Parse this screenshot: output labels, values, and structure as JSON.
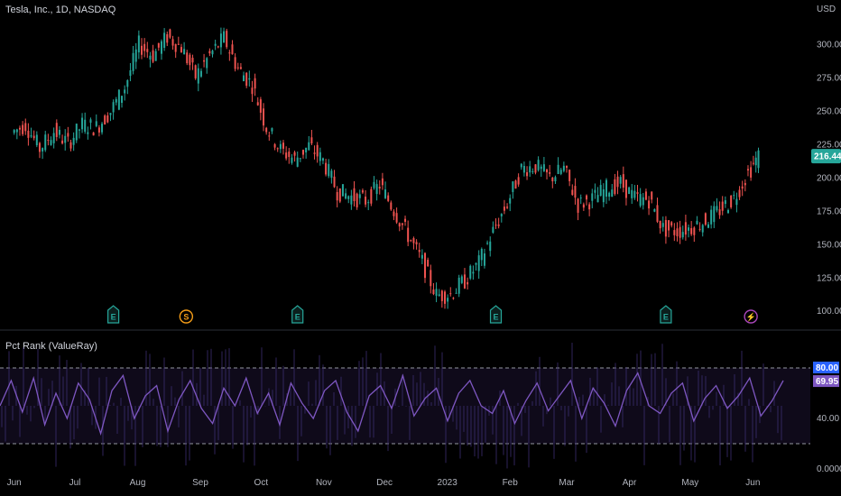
{
  "header": {
    "symbol_title": "Tesla, Inc., 1D, NASDAQ",
    "currency": "USD"
  },
  "indicator": {
    "title": "Pct Rank (ValueRay)",
    "upper_label": "80.00",
    "current_label": "69.95",
    "upper_color": "#2962ff",
    "current_color": "#7e57c2"
  },
  "colors": {
    "up": "#26a69a",
    "down": "#ef5350",
    "line": "#7e57c2",
    "price_badge": "#26a69a",
    "earnings": "#26a69a",
    "dividend": "#f59d18",
    "split": "#ab47bc"
  },
  "events": [
    {
      "kind": "earnings",
      "glyph": "E",
      "date_index": 0
    },
    {
      "kind": "dividend",
      "glyph": "S",
      "date_index": 1
    },
    {
      "kind": "earnings",
      "glyph": "E",
      "date_index": 2
    },
    {
      "kind": "earnings",
      "glyph": "E",
      "date_index": 3
    },
    {
      "kind": "earnings",
      "glyph": "E",
      "date_index": 4
    },
    {
      "kind": "split",
      "glyph": "⚡",
      "date_index": 5
    }
  ],
  "chart_data": [
    {
      "type": "candlestick",
      "title": "Tesla, Inc., 1D, NASDAQ",
      "ylabel": "USD",
      "ylim": [
        90,
        320
      ],
      "y_ticks": [
        "300.00",
        "275.00",
        "250.00",
        "225.00",
        "200.00",
        "175.00",
        "150.00",
        "125.00",
        "100.00"
      ],
      "x_ticks": [
        "Jun",
        "Jul",
        "Aug",
        "Sep",
        "Oct",
        "Nov",
        "Dec",
        "2023",
        "Feb",
        "Mar",
        "Apr",
        "May",
        "Jun"
      ],
      "last_price": "216.44",
      "event_dates": [
        "2022-07-20",
        "2022-08-25",
        "2022-10-19",
        "2023-01-25",
        "2023-04-19",
        "2023-05-31"
      ],
      "series": [
        {
          "values": [
            {
              "d": "2022-06-01",
              "c": 234
            },
            {
              "d": "2022-06-08",
              "c": 240
            },
            {
              "d": "2022-06-15",
              "c": 222
            },
            {
              "d": "2022-06-22",
              "c": 235
            },
            {
              "d": "2022-06-29",
              "c": 226
            },
            {
              "d": "2022-07-06",
              "c": 240
            },
            {
              "d": "2022-07-13",
              "c": 238
            },
            {
              "d": "2022-07-20",
              "c": 250
            },
            {
              "d": "2022-07-27",
              "c": 268
            },
            {
              "d": "2022-08-03",
              "c": 300
            },
            {
              "d": "2022-08-10",
              "c": 292
            },
            {
              "d": "2022-08-17",
              "c": 306
            },
            {
              "d": "2022-08-24",
              "c": 298
            },
            {
              "d": "2022-08-31",
              "c": 276
            },
            {
              "d": "2022-09-07",
              "c": 292
            },
            {
              "d": "2022-09-14",
              "c": 305
            },
            {
              "d": "2022-09-21",
              "c": 282
            },
            {
              "d": "2022-09-28",
              "c": 270
            },
            {
              "d": "2022-10-05",
              "c": 238
            },
            {
              "d": "2022-10-12",
              "c": 221
            },
            {
              "d": "2022-10-19",
              "c": 214
            },
            {
              "d": "2022-10-26",
              "c": 224
            },
            {
              "d": "2022-11-02",
              "c": 213
            },
            {
              "d": "2022-11-09",
              "c": 190
            },
            {
              "d": "2022-11-16",
              "c": 186
            },
            {
              "d": "2022-11-23",
              "c": 183
            },
            {
              "d": "2022-11-30",
              "c": 195
            },
            {
              "d": "2022-12-07",
              "c": 176
            },
            {
              "d": "2022-12-14",
              "c": 157
            },
            {
              "d": "2022-12-21",
              "c": 137
            },
            {
              "d": "2022-12-28",
              "c": 112
            },
            {
              "d": "2023-01-04",
              "c": 113
            },
            {
              "d": "2023-01-11",
              "c": 123
            },
            {
              "d": "2023-01-18",
              "c": 136
            },
            {
              "d": "2023-01-25",
              "c": 160
            },
            {
              "d": "2023-02-01",
              "c": 181
            },
            {
              "d": "2023-02-08",
              "c": 207
            },
            {
              "d": "2023-02-15",
              "c": 209
            },
            {
              "d": "2023-02-22",
              "c": 200
            },
            {
              "d": "2023-03-01",
              "c": 207
            },
            {
              "d": "2023-03-08",
              "c": 180
            },
            {
              "d": "2023-03-15",
              "c": 184
            },
            {
              "d": "2023-03-22",
              "c": 192
            },
            {
              "d": "2023-03-29",
              "c": 196
            },
            {
              "d": "2023-04-05",
              "c": 185
            },
            {
              "d": "2023-04-12",
              "c": 184
            },
            {
              "d": "2023-04-19",
              "c": 162
            },
            {
              "d": "2023-04-26",
              "c": 160
            },
            {
              "d": "2023-05-03",
              "c": 163
            },
            {
              "d": "2023-05-10",
              "c": 168
            },
            {
              "d": "2023-05-17",
              "c": 176
            },
            {
              "d": "2023-05-24",
              "c": 185
            },
            {
              "d": "2023-05-31",
              "c": 204
            },
            {
              "d": "2023-06-05",
              "c": 216.44
            }
          ]
        }
      ]
    },
    {
      "type": "line",
      "title": "Pct Rank (ValueRay)",
      "ylim": [
        0,
        100
      ],
      "y_ticks": [
        "40.00",
        "0.0000"
      ],
      "bands": [
        80,
        20
      ],
      "last_value": 69.95,
      "series": [
        {
          "values": [
            50,
            70,
            45,
            72,
            35,
            60,
            40,
            68,
            55,
            28,
            62,
            74,
            40,
            58,
            66,
            30,
            55,
            70,
            48,
            36,
            64,
            50,
            72,
            44,
            60,
            35,
            68,
            52,
            40,
            62,
            70,
            45,
            30,
            58,
            66,
            48,
            74,
            42,
            56,
            64,
            38,
            60,
            70,
            50,
            44,
            62,
            36,
            54,
            68,
            46,
            58,
            70,
            40,
            64,
            52,
            34,
            62,
            76,
            50,
            44,
            60,
            68,
            38,
            56,
            66,
            48,
            58,
            72,
            42,
            54,
            70
          ]
        }
      ]
    }
  ]
}
